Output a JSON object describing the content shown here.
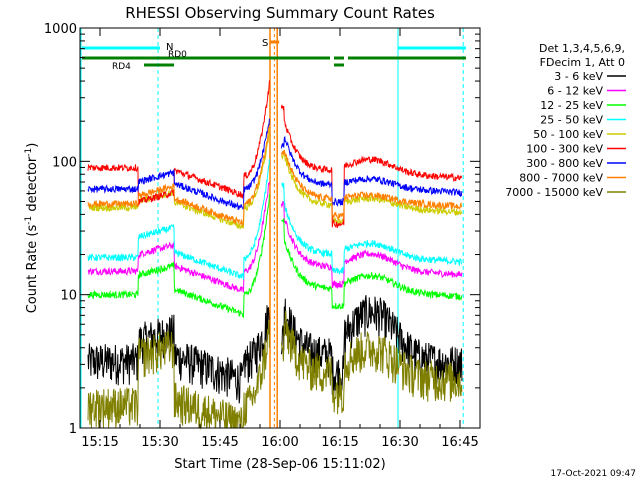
{
  "chart_data": {
    "type": "line",
    "title": "RHESSI Observing Summary Count Rates",
    "xlabel": "Start Time (28-Sep-06 15:11:02)",
    "ylabel_main": "Count Rate (s",
    "ylabel_exp1": "-1",
    "ylabel_mid": " detector",
    "ylabel_exp2": "-1",
    "ylabel_end": ")",
    "ylog": true,
    "ylim": [
      1,
      1000
    ],
    "xlim_minutes": [
      910,
      1010
    ],
    "x_ticks": [
      {
        "label": "15:15",
        "min": 915
      },
      {
        "label": "15:30",
        "min": 930
      },
      {
        "label": "15:45",
        "min": 945
      },
      {
        "label": "16:00",
        "min": 960
      },
      {
        "label": "16:15",
        "min": 975
      },
      {
        "label": "16:30",
        "min": 990
      },
      {
        "label": "16:45",
        "min": 1005
      }
    ],
    "y_ticks": [
      {
        "label": "1",
        "value": 1
      },
      {
        "label": "10",
        "value": 10
      },
      {
        "label": "100",
        "value": 100
      },
      {
        "label": "1000",
        "value": 1000
      }
    ],
    "legend_header": [
      "Det 1,3,4,5,6,9,",
      "FDecim 1, Att 0"
    ],
    "legend_position": "right",
    "series": [
      {
        "name": "3 - 6 keV",
        "color": "#000000",
        "base": 3.2,
        "flat": 3.5,
        "peak": 8,
        "pre": 4.5,
        "hump": 2.2
      },
      {
        "name": "6 - 12 keV",
        "color": "#ff00ff",
        "base": 15,
        "flat": 16,
        "peak": 80,
        "pre": 20,
        "hump": 1.3
      },
      {
        "name": "12 - 25 keV",
        "color": "#00ff00",
        "base": 10,
        "flat": 11,
        "peak": 60,
        "pre": 14,
        "hump": 1.3
      },
      {
        "name": "25 - 50 keV",
        "color": "#00ffff",
        "base": 19,
        "flat": 20,
        "peak": 110,
        "pre": 27,
        "hump": 1.25
      },
      {
        "name": "50 - 100 keV",
        "color": "#cccc00",
        "base": 45,
        "flat": 47,
        "peak": 180,
        "pre": 50,
        "hump": 1.15
      },
      {
        "name": "100 - 300 keV",
        "color": "#ff0000",
        "base": 78,
        "flat": 85,
        "peak": 420,
        "pre": 90,
        "hump": 1.25
      },
      {
        "name": "300 - 800 keV",
        "color": "#0000ff",
        "base": 62,
        "flat": 66,
        "peak": 220,
        "pre": 70,
        "hump": 1.15
      },
      {
        "name": "800 - 7000 keV",
        "color": "#ff8000",
        "base": 48,
        "flat": 52,
        "peak": 200,
        "pre": 55,
        "hump": 1.1
      },
      {
        "name": "7000 - 15000 keV",
        "color": "#808000",
        "base": 1.5,
        "flat": 2.6,
        "peak": 6,
        "pre": 3.5,
        "hump": 1.6
      }
    ],
    "annotations": {
      "night_label": "N",
      "saa_label": "S",
      "rd0_label": "RD0",
      "rd4_label": "RD4"
    },
    "timestamp": "17-Oct-2021 09:47"
  }
}
